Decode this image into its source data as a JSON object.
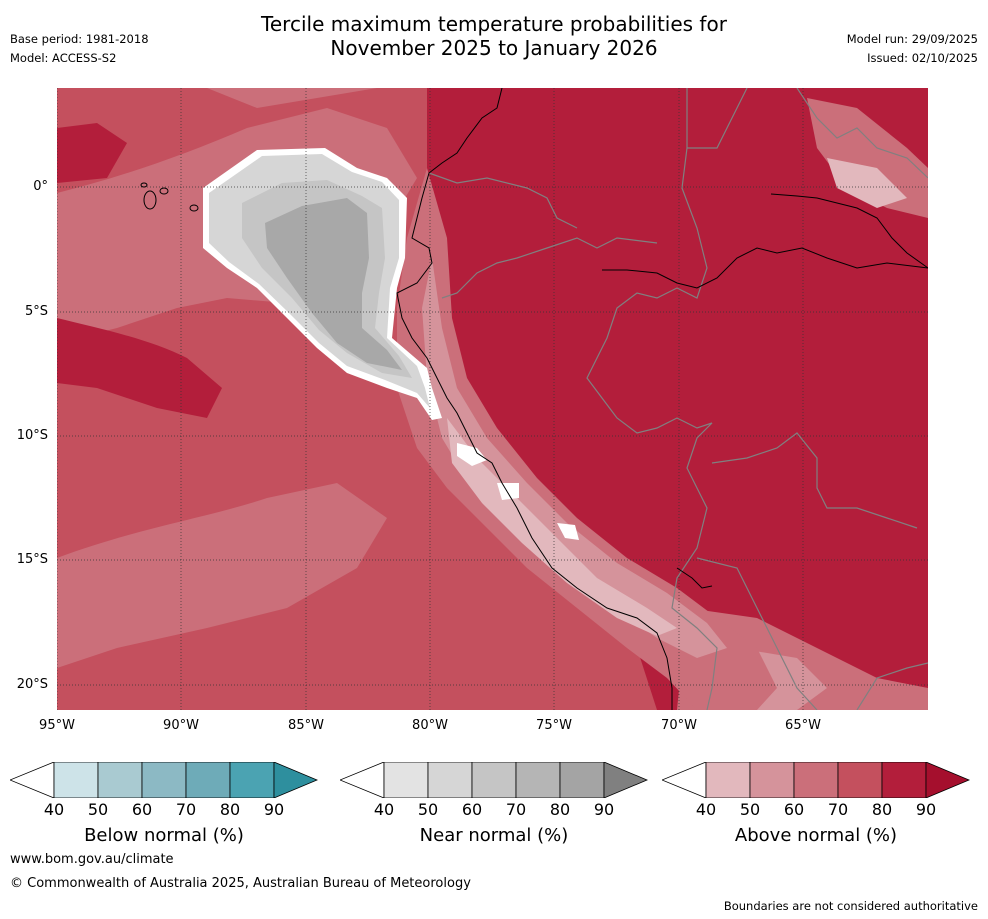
{
  "title": {
    "line1": "Tercile maximum temperature probabilities for",
    "line2": "November 2025 to January 2026"
  },
  "meta": {
    "base_period": "Base period: 1981-2018",
    "model": "Model: ACCESS-S2",
    "model_run": "Model run: 29/09/2025",
    "issued": "Issued: 02/10/2025"
  },
  "map": {
    "lat_labels": [
      "0°",
      "5°S",
      "10°S",
      "15°S",
      "20°S"
    ],
    "lon_labels": [
      "95°W",
      "90°W",
      "85°W",
      "80°W",
      "75°W",
      "70°W",
      "65°W"
    ],
    "colors": {
      "ocean_base": "#c4505e",
      "above_60": "#cb6f7a",
      "above_70": "#c4505e",
      "above_80": "#b31e3b",
      "above_50": "#d5939b",
      "above_40": "#e2b8bd",
      "near_50": "#d6d6d6",
      "near_60": "#c5c5c5",
      "near_80": "#a8a8a8",
      "coast": "#000000",
      "border": "#808080",
      "grid": "#333333"
    }
  },
  "legends": {
    "below": {
      "label": "Below normal (%)",
      "ticks": [
        "40",
        "50",
        "60",
        "70",
        "80",
        "90"
      ],
      "colors": [
        "#ffffff",
        "#cde3e8",
        "#a9cad1",
        "#8cb9c4",
        "#6eabb8",
        "#4ba3b2",
        "#2e8f9e"
      ]
    },
    "near": {
      "label": "Near normal (%)",
      "ticks": [
        "40",
        "50",
        "60",
        "70",
        "80",
        "90"
      ],
      "colors": [
        "#ffffff",
        "#e3e3e3",
        "#d6d6d6",
        "#c5c5c5",
        "#b5b5b5",
        "#a4a4a4",
        "#808080"
      ]
    },
    "above": {
      "label": "Above normal (%)",
      "ticks": [
        "40",
        "50",
        "60",
        "70",
        "80",
        "90"
      ],
      "colors": [
        "#ffffff",
        "#e2b8bd",
        "#d5939b",
        "#cb6f7a",
        "#c4505e",
        "#b31e3b",
        "#a50f2d"
      ]
    }
  },
  "footer": {
    "url": "www.bom.gov.au/climate",
    "copyright": "© Commonwealth of Australia 2025, Australian Bureau of Meteorology",
    "disclaimer": "Boundaries are not considered authoritative"
  }
}
